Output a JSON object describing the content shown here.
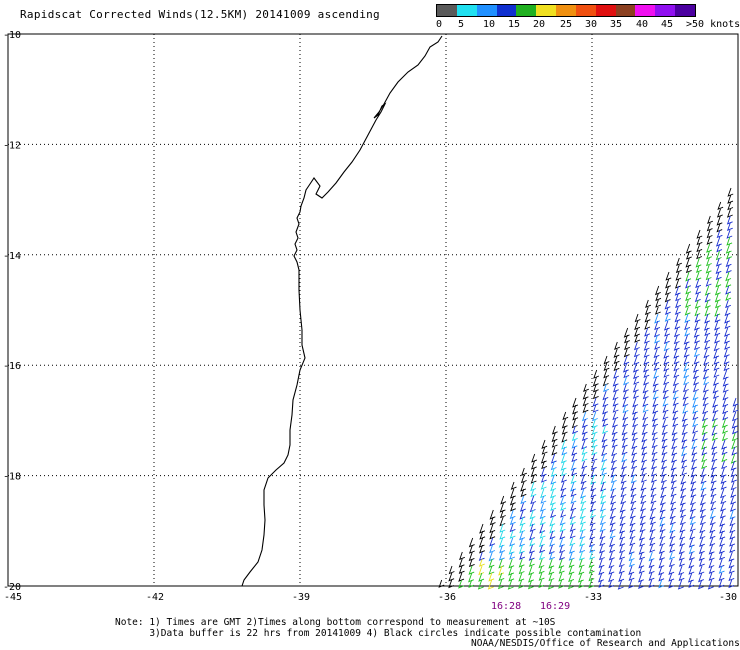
{
  "title": "Rapidscat Corrected Winds(12.5KM) 20141009 ascending",
  "scale": {
    "colors": [
      "#5a5a5a",
      "#20e0f0",
      "#2090ff",
      "#1030d0",
      "#20b020",
      "#f0e020",
      "#f09010",
      "#f05010",
      "#e01010",
      "#8b4020",
      "#f010f0",
      "#9010f0",
      "#4b00a0"
    ],
    "labels": [
      "0",
      "5",
      "10",
      "15",
      "20",
      "25",
      "30",
      "35",
      "40",
      "45",
      ">50 knots"
    ]
  },
  "axes": {
    "lat_labels": [
      "-10",
      "-12",
      "-14",
      "-16",
      "-18",
      "-20"
    ],
    "lon_labels": [
      "-45",
      "-42",
      "-39",
      "-36",
      "-33",
      "-30"
    ]
  },
  "times": {
    "t1": "16:28",
    "t2": "16:29",
    "t1_color": "#800080",
    "t2_color": "#800080"
  },
  "notes": {
    "line1": "Note: 1) Times are GMT 2)Times along bottom correspond to measurement at ~10S",
    "line2": "      3)Data buffer is 22 hrs from 20141009 4) Black circles indicate possible contamination"
  },
  "credit": "NOAA/NESDIS/Office of Research and Applications",
  "wind_colors": {
    "black": "#000000",
    "blue": "#1a2fd0",
    "azure": "#2090ff",
    "cyan": "#20d8e8",
    "green": "#20c020",
    "yellow": "#e8e020"
  },
  "coastline_color": "#000000"
}
